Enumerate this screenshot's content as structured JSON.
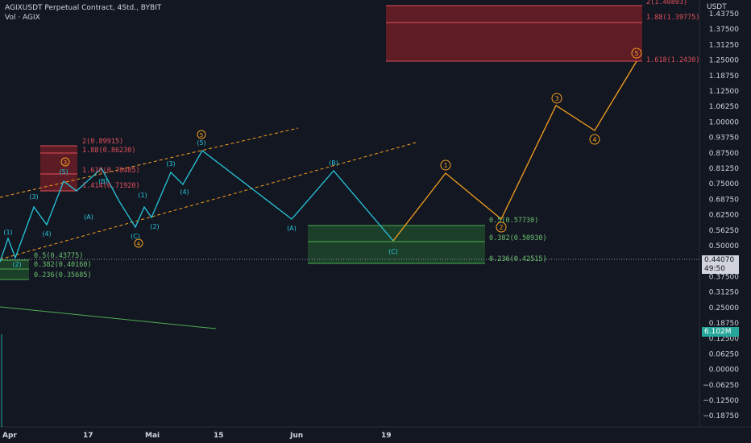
{
  "header": {
    "symbol_line": "AGIXUSDT Perpetual Contract, 4Std., BYBIT",
    "volume_line": "Vol · AGIX"
  },
  "price_axis": {
    "unit": "USDT",
    "ticks": [
      "1.43750",
      "1.37500",
      "1.31250",
      "1.25000",
      "1.18750",
      "1.12500",
      "1.06250",
      "1.00000",
      "0.93750",
      "0.87500",
      "0.81250",
      "0.75000",
      "0.68750",
      "0.62500",
      "0.56250",
      "0.50000",
      "0.43750",
      "0.37500",
      "0.31250",
      "0.25000",
      "0.18750",
      "0.12500",
      "0.06250",
      "0.00000",
      "−0.06250",
      "−0.12500",
      "−0.18750"
    ],
    "current_price": "0.44070",
    "countdown": "49:50",
    "volume_value": "6.102M"
  },
  "time_axis": {
    "labels": [
      "Apr",
      "17",
      "Mai",
      "15",
      "Jun",
      "19"
    ]
  },
  "fib_labels": {
    "top_2": "2(1.40803)",
    "top_188": "1.88(1.39775)",
    "top_1618": "1.618(1.2430)",
    "left_2": "2(0.89915)",
    "left_188": "1.88(0.86230)",
    "left_1618": "1.618(0.78485)",
    "left_1414": "1.414(0.71920)",
    "mid_05": "0.5(0.57730)",
    "mid_0382": "0.382(0.50930)",
    "mid_0236": "0.236(0.42515)",
    "low_05": "0.5(0.43775)",
    "low_0382": "0.382(0.40160)",
    "low_0236": "0.236(0.35685)"
  },
  "wave_labels": {
    "w1": "(1)",
    "w2": "(2)",
    "w3": "(3)",
    "w4": "(4)",
    "w5": "(5)",
    "a_paren": "(A)",
    "b_paren": "(B)",
    "c_paren": "(C)",
    "A": "(A)",
    "B": "(B)",
    "C": "(C)",
    "circ1": "1",
    "circ2": "2",
    "circ3": "3",
    "circ4": "4",
    "circ5": "5"
  },
  "colors": {
    "background": "#131722",
    "cyan_wave": "#26c6da",
    "orange_wave": "#f59f1f",
    "red_zone": "#b22833",
    "green_zone": "#1f4a2c",
    "fib_red_text": "#e0505b",
    "fib_green_text": "#6cc070",
    "axis_text": "#d1d4dc"
  }
}
